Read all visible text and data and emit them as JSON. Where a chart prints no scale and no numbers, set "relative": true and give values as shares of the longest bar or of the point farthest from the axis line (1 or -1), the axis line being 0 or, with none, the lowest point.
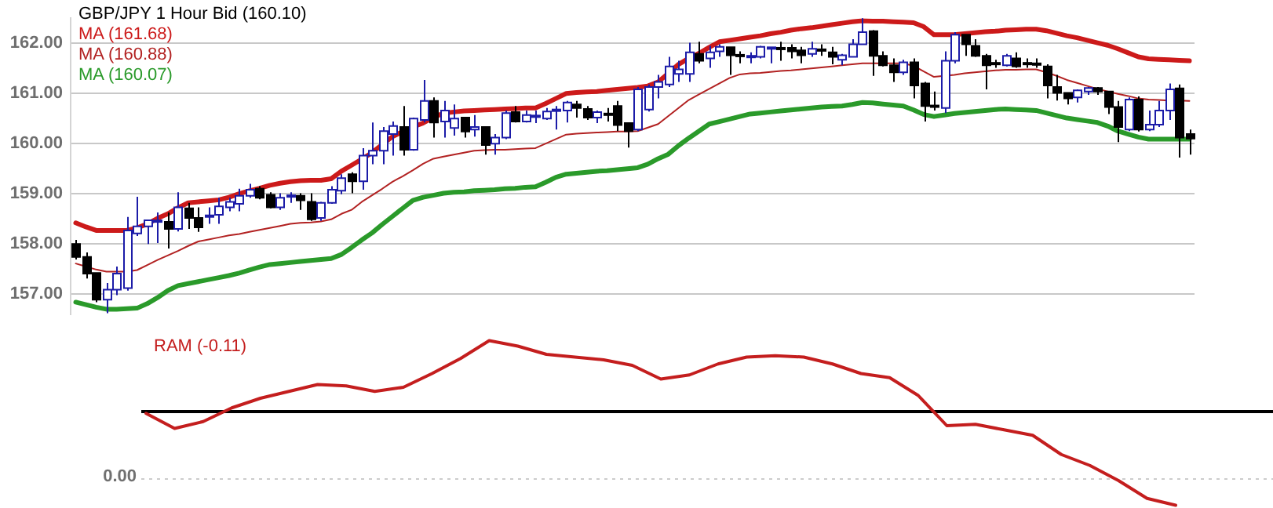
{
  "chart_data": [
    {
      "type": "candlestick",
      "title": "GBP/JPY 1 Hour Bid (160.10)",
      "categories": [
        null,
        null,
        null,
        null,
        null,
        null,
        null,
        null,
        null,
        null,
        null,
        null,
        null,
        null,
        null,
        null,
        null,
        null,
        null,
        null,
        null,
        null,
        null,
        null,
        null,
        null,
        null,
        null,
        null,
        null,
        null,
        null,
        null,
        null,
        null,
        null,
        null,
        null,
        null,
        null,
        null,
        null,
        null,
        null,
        null,
        null,
        null,
        null,
        null,
        null,
        null,
        null,
        null,
        null,
        null,
        null,
        null,
        null,
        null,
        null,
        null,
        null,
        null,
        null,
        null,
        null,
        null,
        null,
        null,
        null,
        null,
        null,
        null,
        null,
        null,
        null,
        null,
        null,
        null,
        null,
        null,
        null,
        null,
        null,
        null,
        null,
        null,
        null,
        null,
        null,
        null,
        null,
        null,
        null,
        null,
        null,
        null,
        null,
        null,
        null,
        null,
        null,
        null,
        null,
        null,
        null,
        null,
        null,
        null,
        null
      ],
      "ohlc": [
        [
          158.0,
          158.08,
          157.69,
          157.74
        ],
        [
          157.74,
          157.83,
          157.31,
          157.41
        ],
        [
          157.42,
          157.42,
          156.84,
          156.89
        ],
        [
          156.89,
          157.22,
          156.62,
          157.09
        ],
        [
          157.09,
          157.55,
          156.98,
          157.41
        ],
        [
          157.12,
          158.54,
          157.07,
          158.27
        ],
        [
          158.21,
          158.94,
          158.16,
          158.35
        ],
        [
          158.35,
          158.47,
          158.0,
          158.47
        ],
        [
          158.44,
          158.63,
          158.02,
          158.47
        ],
        [
          158.44,
          158.63,
          157.91,
          158.3
        ],
        [
          158.3,
          159.03,
          158.25,
          158.73
        ],
        [
          158.71,
          158.82,
          158.3,
          158.52
        ],
        [
          158.52,
          158.73,
          158.24,
          158.33
        ],
        [
          158.55,
          158.73,
          158.4,
          158.57
        ],
        [
          158.58,
          158.92,
          158.4,
          158.75
        ],
        [
          158.73,
          158.92,
          158.65,
          158.84
        ],
        [
          158.8,
          159.1,
          158.65,
          158.96
        ],
        [
          158.96,
          159.2,
          158.92,
          159.08
        ],
        [
          159.1,
          159.15,
          158.89,
          158.92
        ],
        [
          158.98,
          159.03,
          158.71,
          158.73
        ],
        [
          158.73,
          159.01,
          158.68,
          158.92
        ],
        [
          158.96,
          159.03,
          158.82,
          158.97
        ],
        [
          158.96,
          159.01,
          158.68,
          158.87
        ],
        [
          158.84,
          159.01,
          158.46,
          158.49
        ],
        [
          158.52,
          158.84,
          158.46,
          158.82
        ],
        [
          158.82,
          159.15,
          158.8,
          159.08
        ],
        [
          159.06,
          159.39,
          158.99,
          159.31
        ],
        [
          159.39,
          159.43,
          159.01,
          159.25
        ],
        [
          159.25,
          159.91,
          159.08,
          159.76
        ],
        [
          159.76,
          160.42,
          159.59,
          159.86
        ],
        [
          159.86,
          160.33,
          159.59,
          160.25
        ],
        [
          160.19,
          160.44,
          159.76,
          160.35
        ],
        [
          160.33,
          160.75,
          159.76,
          159.88
        ],
        [
          159.88,
          160.52,
          159.86,
          160.5
        ],
        [
          160.47,
          161.27,
          160.42,
          160.85
        ],
        [
          160.85,
          160.92,
          160.12,
          160.42
        ],
        [
          160.44,
          160.85,
          160.12,
          160.66
        ],
        [
          160.31,
          160.78,
          160.16,
          160.5
        ],
        [
          160.52,
          160.52,
          160.12,
          160.24
        ],
        [
          160.28,
          160.57,
          160.14,
          160.33
        ],
        [
          160.33,
          160.33,
          159.78,
          159.97
        ],
        [
          160.0,
          160.19,
          159.78,
          160.12
        ],
        [
          160.12,
          160.66,
          160.09,
          160.61
        ],
        [
          160.63,
          160.75,
          160.42,
          160.44
        ],
        [
          160.44,
          160.66,
          160.42,
          160.57
        ],
        [
          160.54,
          160.66,
          160.41,
          160.56
        ],
        [
          160.5,
          160.71,
          160.47,
          160.64
        ],
        [
          160.67,
          160.75,
          160.28,
          160.68
        ],
        [
          160.66,
          160.85,
          160.42,
          160.82
        ],
        [
          160.78,
          160.85,
          160.52,
          160.71
        ],
        [
          160.69,
          160.75,
          160.47,
          160.52
        ],
        [
          160.52,
          160.66,
          160.41,
          160.63
        ],
        [
          160.6,
          160.71,
          160.44,
          160.59
        ],
        [
          160.75,
          160.85,
          160.25,
          160.37
        ],
        [
          160.41,
          160.41,
          159.92,
          160.25
        ],
        [
          160.28,
          161.13,
          160.25,
          161.08
        ],
        [
          160.68,
          161.18,
          160.64,
          161.13
        ],
        [
          161.13,
          161.37,
          160.9,
          161.23
        ],
        [
          161.18,
          161.73,
          161.13,
          161.54
        ],
        [
          161.39,
          161.65,
          161.23,
          161.48
        ],
        [
          161.39,
          162.01,
          161.23,
          161.82
        ],
        [
          161.79,
          162.03,
          161.6,
          161.65
        ],
        [
          161.7,
          161.95,
          161.51,
          161.82
        ],
        [
          161.84,
          161.98,
          161.73,
          161.93
        ],
        [
          161.92,
          161.92,
          161.37,
          161.76
        ],
        [
          161.77,
          161.84,
          161.6,
          161.76
        ],
        [
          161.74,
          161.82,
          161.6,
          161.75
        ],
        [
          161.73,
          161.95,
          161.7,
          161.93
        ],
        [
          161.9,
          161.92,
          161.6,
          161.92
        ],
        [
          161.91,
          162.03,
          161.65,
          161.9
        ],
        [
          161.91,
          161.98,
          161.7,
          161.84
        ],
        [
          161.86,
          161.93,
          161.6,
          161.76
        ],
        [
          161.79,
          162.03,
          161.73,
          161.89
        ],
        [
          161.88,
          161.98,
          161.75,
          161.87
        ],
        [
          161.82,
          161.93,
          161.58,
          161.73
        ],
        [
          161.67,
          161.79,
          161.56,
          161.76
        ],
        [
          161.73,
          162.08,
          161.73,
          161.98
        ],
        [
          161.98,
          162.5,
          161.98,
          162.22
        ],
        [
          162.24,
          162.26,
          161.35,
          161.75
        ],
        [
          161.75,
          161.84,
          161.54,
          161.56
        ],
        [
          161.56,
          161.7,
          161.23,
          161.42
        ],
        [
          161.42,
          161.67,
          161.37,
          161.62
        ],
        [
          161.62,
          161.7,
          160.9,
          161.16
        ],
        [
          161.2,
          161.23,
          160.44,
          160.75
        ],
        [
          160.76,
          161.04,
          160.66,
          160.75
        ],
        [
          160.71,
          161.84,
          160.61,
          161.65
        ],
        [
          161.65,
          162.22,
          161.6,
          162.17
        ],
        [
          162.17,
          162.17,
          161.75,
          161.98
        ],
        [
          161.95,
          162.08,
          161.73,
          161.75
        ],
        [
          161.75,
          161.79,
          161.08,
          161.56
        ],
        [
          161.61,
          161.67,
          161.51,
          161.6
        ],
        [
          161.56,
          161.79,
          161.54,
          161.75
        ],
        [
          161.7,
          161.82,
          161.51,
          161.54
        ],
        [
          161.61,
          161.7,
          161.51,
          161.6
        ],
        [
          161.6,
          161.7,
          161.51,
          161.59
        ],
        [
          161.54,
          161.58,
          160.9,
          161.16
        ],
        [
          161.13,
          161.37,
          160.86,
          161.01
        ],
        [
          161.01,
          161.01,
          160.78,
          160.9
        ],
        [
          160.92,
          161.08,
          160.82,
          161.06
        ],
        [
          161.04,
          161.13,
          160.97,
          161.11
        ],
        [
          161.11,
          161.13,
          160.97,
          161.04
        ],
        [
          161.04,
          161.04,
          160.59,
          160.73
        ],
        [
          160.73,
          160.85,
          160.03,
          160.33
        ],
        [
          160.28,
          160.92,
          160.25,
          160.88
        ],
        [
          160.88,
          160.94,
          160.24,
          160.28
        ],
        [
          160.28,
          160.66,
          160.25,
          160.38
        ],
        [
          160.38,
          160.85,
          160.33,
          160.66
        ],
        [
          160.66,
          161.2,
          160.47,
          161.08
        ],
        [
          161.1,
          161.18,
          159.72,
          160.12
        ],
        [
          160.19,
          160.28,
          159.78,
          160.1
        ]
      ],
      "series": [
        {
          "name": "MA (161.68)",
          "type": "line",
          "color": "#cc1a1a",
          "values": [
            158.42,
            158.34,
            158.27,
            158.27,
            158.27,
            158.27,
            158.32,
            158.4,
            158.51,
            158.6,
            158.72,
            158.82,
            158.84,
            158.86,
            158.88,
            158.93,
            159.0,
            159.06,
            159.11,
            159.17,
            159.21,
            159.24,
            159.26,
            159.27,
            159.27,
            159.3,
            159.45,
            159.57,
            159.69,
            159.82,
            159.98,
            160.14,
            160.24,
            160.33,
            160.41,
            160.52,
            160.61,
            160.63,
            160.65,
            160.66,
            160.67,
            160.68,
            160.69,
            160.7,
            160.71,
            160.71,
            160.8,
            160.9,
            161.0,
            161.02,
            161.03,
            161.04,
            161.06,
            161.08,
            161.1,
            161.12,
            161.15,
            161.23,
            161.4,
            161.58,
            161.7,
            161.8,
            161.92,
            162.03,
            162.06,
            162.09,
            162.12,
            162.15,
            162.19,
            162.22,
            162.26,
            162.29,
            162.31,
            162.34,
            162.37,
            162.4,
            162.43,
            162.45,
            162.44,
            162.44,
            162.43,
            162.42,
            162.41,
            162.33,
            162.17,
            162.17,
            162.17,
            162.19,
            162.21,
            162.23,
            162.24,
            162.26,
            162.27,
            162.28,
            162.28,
            162.25,
            162.2,
            162.15,
            162.11,
            162.06,
            162.01,
            161.96,
            161.89,
            161.81,
            161.73,
            161.69,
            161.68,
            161.67,
            161.66,
            161.65
          ]
        },
        {
          "name": "MA (160.88)",
          "type": "line",
          "color": "#b22222",
          "values": [
            157.61,
            157.55,
            157.49,
            157.45,
            157.45,
            157.45,
            157.48,
            157.58,
            157.68,
            157.77,
            157.86,
            157.96,
            158.05,
            158.09,
            158.13,
            158.17,
            158.2,
            158.24,
            158.28,
            158.32,
            158.36,
            158.4,
            158.42,
            158.43,
            158.45,
            158.49,
            158.6,
            158.68,
            158.84,
            158.97,
            159.1,
            159.24,
            159.35,
            159.47,
            159.6,
            159.7,
            159.74,
            159.78,
            159.82,
            159.86,
            159.87,
            159.88,
            159.88,
            159.89,
            159.9,
            159.91,
            160.0,
            160.09,
            160.18,
            160.2,
            160.21,
            160.22,
            160.23,
            160.24,
            160.24,
            160.25,
            160.32,
            160.39,
            160.55,
            160.71,
            160.87,
            160.98,
            161.09,
            161.2,
            161.31,
            161.38,
            161.4,
            161.41,
            161.43,
            161.45,
            161.46,
            161.48,
            161.5,
            161.52,
            161.54,
            161.56,
            161.58,
            161.6,
            161.6,
            161.6,
            161.6,
            161.6,
            161.55,
            161.44,
            161.33,
            161.35,
            161.37,
            161.4,
            161.42,
            161.44,
            161.46,
            161.47,
            161.47,
            161.48,
            161.48,
            161.42,
            161.35,
            161.27,
            161.21,
            161.15,
            161.09,
            161.04,
            160.99,
            160.95,
            160.9,
            160.88,
            160.87,
            160.86,
            160.86,
            160.85
          ]
        },
        {
          "name": "MA (160.07)",
          "type": "line",
          "color": "#2a9a2a",
          "values": [
            156.84,
            156.79,
            156.74,
            156.7,
            156.7,
            156.71,
            156.72,
            156.81,
            156.93,
            157.07,
            157.17,
            157.21,
            157.25,
            157.29,
            157.33,
            157.37,
            157.42,
            157.48,
            157.54,
            157.59,
            157.61,
            157.63,
            157.65,
            157.67,
            157.69,
            157.71,
            157.79,
            157.93,
            158.08,
            158.22,
            158.39,
            158.55,
            158.71,
            158.87,
            158.93,
            158.97,
            159.01,
            159.03,
            159.04,
            159.06,
            159.07,
            159.08,
            159.1,
            159.11,
            159.13,
            159.14,
            159.23,
            159.33,
            159.39,
            159.41,
            159.43,
            159.45,
            159.46,
            159.48,
            159.5,
            159.52,
            159.59,
            159.7,
            159.79,
            159.96,
            160.11,
            160.25,
            160.39,
            160.44,
            160.49,
            160.54,
            160.59,
            160.61,
            160.63,
            160.65,
            160.67,
            160.69,
            160.71,
            160.73,
            160.74,
            160.75,
            160.78,
            160.82,
            160.81,
            160.79,
            160.77,
            160.75,
            160.67,
            160.58,
            160.54,
            160.57,
            160.6,
            160.62,
            160.64,
            160.66,
            160.68,
            160.69,
            160.68,
            160.67,
            160.66,
            160.61,
            160.56,
            160.51,
            160.48,
            160.45,
            160.42,
            160.35,
            160.25,
            160.19,
            160.13,
            160.09,
            160.09,
            160.09,
            160.09,
            160.09
          ]
        }
      ],
      "ylim": [
        156.6,
        162.5
      ],
      "yticks": [
        {
          "value": 157,
          "label": "157.00"
        },
        {
          "value": 158,
          "label": "158.00"
        },
        {
          "value": 159,
          "label": "159.00"
        },
        {
          "value": 160,
          "label": "160.00"
        },
        {
          "value": 161,
          "label": "161.00"
        },
        {
          "value": 162,
          "label": "162.00"
        }
      ],
      "grid": "y",
      "legend": "top left",
      "marker": "none"
    },
    {
      "type": "line",
      "title": "RAM (-0.11)",
      "relative": true,
      "categories": [
        null,
        null,
        null,
        null,
        null,
        null,
        null,
        null,
        null,
        null,
        null,
        null,
        null,
        null,
        null,
        null,
        null,
        null,
        null,
        null,
        null,
        null,
        null,
        null,
        null,
        null,
        null,
        null,
        null,
        null,
        null,
        null,
        null,
        null,
        null,
        null,
        null
      ],
      "series": [
        {
          "color": "#c41e1e",
          "values": [
            0.47,
            0.36,
            0.41,
            0.51,
            0.58,
            0.63,
            0.68,
            0.67,
            0.63,
            0.66,
            0.76,
            0.87,
            1.0,
            0.96,
            0.9,
            0.88,
            0.86,
            0.82,
            0.72,
            0.75,
            0.83,
            0.88,
            0.89,
            0.88,
            0.83,
            0.76,
            0.73,
            0.6,
            0.38,
            0.39,
            0.35,
            0.31,
            0.17,
            0.09,
            -0.02,
            -0.15,
            -0.2
          ]
        }
      ],
      "ref_lines": [
        {
          "axis": "y",
          "value": 0.49,
          "color": "#000000"
        },
        {
          "axis": "y",
          "value": 0,
          "color": "#cccccc",
          "line_style": "dotted"
        }
      ],
      "annotations": [
        "0.00"
      ],
      "marker": "none"
    }
  ]
}
